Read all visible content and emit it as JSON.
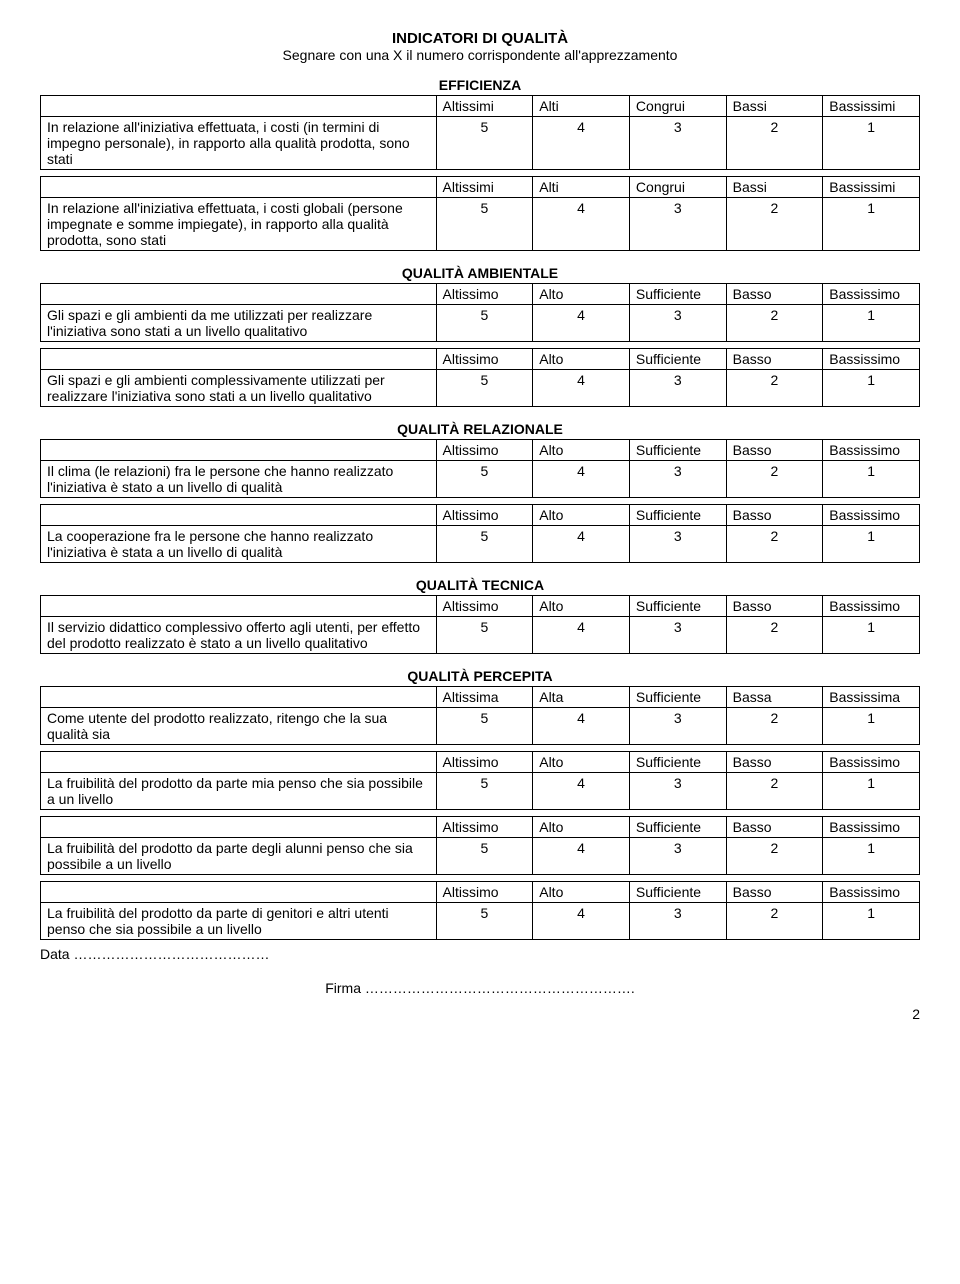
{
  "title": "INDICATORI DI QUALITÀ",
  "subtitle": "Segnare con una X il numero corrispondente all'apprezzamento",
  "scales": {
    "plural_i": [
      "Altissimi",
      "Alti",
      "Congrui",
      "Bassi",
      "Bassissimi"
    ],
    "singular_o": [
      "Altissimo",
      "Alto",
      "Sufficiente",
      "Basso",
      "Bassissimo"
    ],
    "singular_a": [
      "Altissima",
      "Alta",
      "Sufficiente",
      "Bassa",
      "Bassissima"
    ]
  },
  "values": [
    "5",
    "4",
    "3",
    "2",
    "1"
  ],
  "sections": [
    {
      "heading": "EFFICIENZA",
      "items": [
        {
          "desc": "In relazione all'iniziativa effettuata, i costi (in termini di impegno personale), in rapporto alla qualità prodotta, sono stati",
          "scale": "plural_i"
        },
        {
          "desc": "In relazione all'iniziativa effettuata, i costi globali (persone impegnate e somme impiegate), in rapporto alla qualità prodotta, sono stati",
          "scale": "plural_i"
        }
      ]
    },
    {
      "heading": "QUALITÀ AMBIENTALE",
      "items": [
        {
          "desc": "Gli spazi e gli ambienti da me utilizzati per realizzare l'iniziativa sono stati a un livello qualitativo",
          "scale": "singular_o"
        },
        {
          "desc": "Gli spazi e gli ambienti complessivamente utilizzati per  realizzare l'iniziativa sono stati a un livello qualitativo",
          "scale": "singular_o"
        }
      ]
    },
    {
      "heading": "QUALITÀ RELAZIONALE",
      "items": [
        {
          "desc": "Il clima (le relazioni) fra le persone che hanno realizzato l'iniziativa è stato a un livello di qualità",
          "scale": "singular_o"
        },
        {
          "desc": "La cooperazione fra le persone che hanno realizzato l'iniziativa è stata a un livello di qualità",
          "scale": "singular_o"
        }
      ]
    },
    {
      "heading": "QUALITÀ TECNICA",
      "items": [
        {
          "desc": "Il servizio didattico complessivo offerto agli utenti, per effetto del prodotto realizzato è stato a un livello qualitativo",
          "scale": "singular_o"
        }
      ]
    },
    {
      "heading": "QUALITÀ PERCEPITA",
      "items": [
        {
          "desc": "Come utente del prodotto realizzato, ritengo che la sua qualità sia",
          "scale": "singular_a"
        },
        {
          "desc": "La fruibilità del prodotto da parte mia penso che sia possibile a un livello",
          "scale": "singular_o"
        },
        {
          "desc": "La fruibilità del prodotto da parte degli alunni penso che sia possibile a un livello",
          "scale": "singular_o"
        },
        {
          "desc": "La fruibilità del prodotto da parte di genitori e altri utenti penso che sia possibile a un livello",
          "scale": "singular_o"
        }
      ]
    }
  ],
  "data_label": "Data ……………………………………",
  "firma_label": "Firma ………………………………………………….",
  "page_num": "2"
}
